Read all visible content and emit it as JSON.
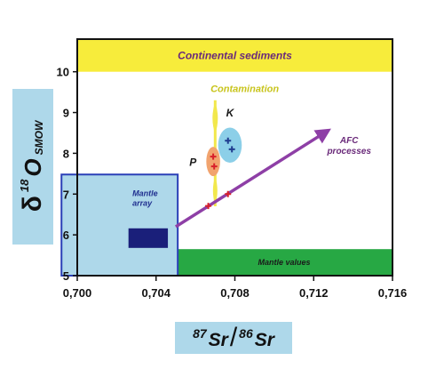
{
  "chart_data": {
    "type": "scatter",
    "xlabel": {
      "sup1": "87",
      "el1": "Sr",
      "slash": "/",
      "sup2": "86",
      "el2": "Sr"
    },
    "ylabel": {
      "delta": "δ",
      "sup": "18",
      "el": "O",
      "sub": "SMOW"
    },
    "xlim": [
      0.7,
      0.716
    ],
    "ylim": [
      5,
      10.8
    ],
    "xticks": [
      0.7,
      0.704,
      0.708,
      0.712,
      0.716
    ],
    "xtick_labels": [
      "0,700",
      "0,704",
      "0,708",
      "0,712",
      "0,716"
    ],
    "yticks": [
      5,
      6,
      7,
      8,
      9,
      10
    ],
    "ytick_labels": [
      "5",
      "6",
      "7",
      "8",
      "9",
      "10"
    ],
    "grid": false,
    "regions": [
      {
        "label": "Continental sediments",
        "x": [
          0.7,
          0.716
        ],
        "y": [
          10.0,
          10.8
        ],
        "color": "#f7ec3b"
      },
      {
        "label": "Mantle values",
        "x": [
          0.705,
          0.716
        ],
        "y": [
          5.0,
          5.65
        ],
        "color": "#27a844"
      },
      {
        "label": "Mantle\narray",
        "x": [
          0.6992,
          0.7051
        ],
        "y": [
          5.0,
          7.48
        ],
        "color": "#aed8ea",
        "outline": "#2a3fb7"
      }
    ],
    "boxes": [
      {
        "x": [
          0.7026,
          0.7046
        ],
        "y": [
          5.68,
          6.16
        ],
        "color": "#1a1f7a"
      }
    ],
    "ellipses": [
      {
        "label": "K",
        "cx": 0.70775,
        "cy": 8.2,
        "rx": 0.0006,
        "ry": 0.43,
        "color": "#8ccfe8"
      },
      {
        "label": "P",
        "cx": 0.7069,
        "cy": 7.8,
        "rx": 0.00035,
        "ry": 0.36,
        "color": "#f1a36e"
      }
    ],
    "annotations": [
      {
        "text": "Contamination",
        "x": 0.7085,
        "y": 9.5,
        "color": "#c8c41c"
      },
      {
        "text": "AFC\nprocesses",
        "x": 0.7138,
        "y": 8.25,
        "color": "#6a2a7a"
      }
    ],
    "contamination_line": {
      "x": 0.707,
      "y": [
        6.7,
        9.3
      ],
      "color": "#f2e84c"
    },
    "afc_arrow": {
      "from": [
        0.705,
        6.2
      ],
      "to": [
        0.7127,
        8.55
      ],
      "color": "#8e3fa6"
    },
    "series": [
      {
        "name": "P",
        "color": "#d8202a",
        "symbol": "plus",
        "points": [
          [
            0.7069,
            7.92
          ],
          [
            0.70695,
            7.68
          ]
        ]
      },
      {
        "name": "K",
        "color": "#1f3c8f",
        "symbol": "plus",
        "points": [
          [
            0.70765,
            8.31
          ],
          [
            0.70785,
            8.1
          ]
        ]
      },
      {
        "name": "",
        "color": "#d8202a",
        "symbol": "plus",
        "points": [
          [
            0.70665,
            6.71
          ],
          [
            0.70765,
            7.0
          ]
        ]
      }
    ]
  }
}
